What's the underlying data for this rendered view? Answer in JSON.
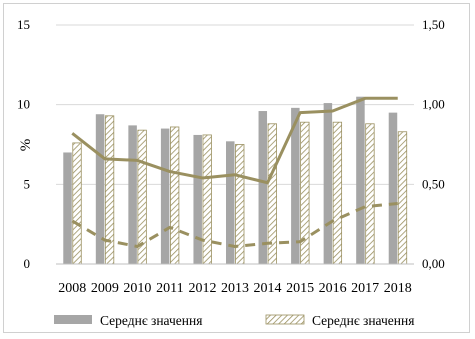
{
  "chart_data": {
    "type": "bar",
    "categories": [
      "2008",
      "2009",
      "2010",
      "2011",
      "2012",
      "2013",
      "2014",
      "2015",
      "2016",
      "2017",
      "2018"
    ],
    "y_left": {
      "label": "%",
      "ylim": [
        0,
        15
      ],
      "ticks": [
        "0",
        "5",
        "10",
        "15"
      ]
    },
    "y_right": {
      "ylim": [
        0,
        1.5
      ],
      "ticks": [
        "0,00",
        "0,50",
        "1,00",
        "1,50"
      ]
    },
    "series": [
      {
        "name": "Середнє значення",
        "kind": "bar",
        "pattern": "solid",
        "color": "#a6a6a6",
        "axis": "left",
        "values": [
          7.0,
          9.4,
          8.7,
          8.5,
          8.1,
          7.7,
          9.6,
          9.8,
          10.1,
          10.5,
          9.5
        ]
      },
      {
        "name": "Середнє значення",
        "kind": "bar",
        "pattern": "hatched",
        "color": "#9a9060",
        "axis": "left",
        "values": [
          7.6,
          9.3,
          8.4,
          8.6,
          8.1,
          7.5,
          8.8,
          8.9,
          8.9,
          8.8,
          8.3
        ]
      },
      {
        "kind": "line",
        "style": "solid",
        "color": "#9a9060",
        "axis": "right",
        "values": [
          0.82,
          0.66,
          0.65,
          0.58,
          0.54,
          0.56,
          0.51,
          0.95,
          0.96,
          1.04,
          1.04
        ]
      },
      {
        "kind": "line",
        "style": "dashed",
        "color": "#9a9060",
        "axis": "right",
        "values": [
          0.27,
          0.15,
          0.11,
          0.23,
          0.15,
          0.11,
          0.13,
          0.14,
          0.27,
          0.36,
          0.38
        ]
      }
    ],
    "grid": true,
    "legend_position": "bottom"
  }
}
